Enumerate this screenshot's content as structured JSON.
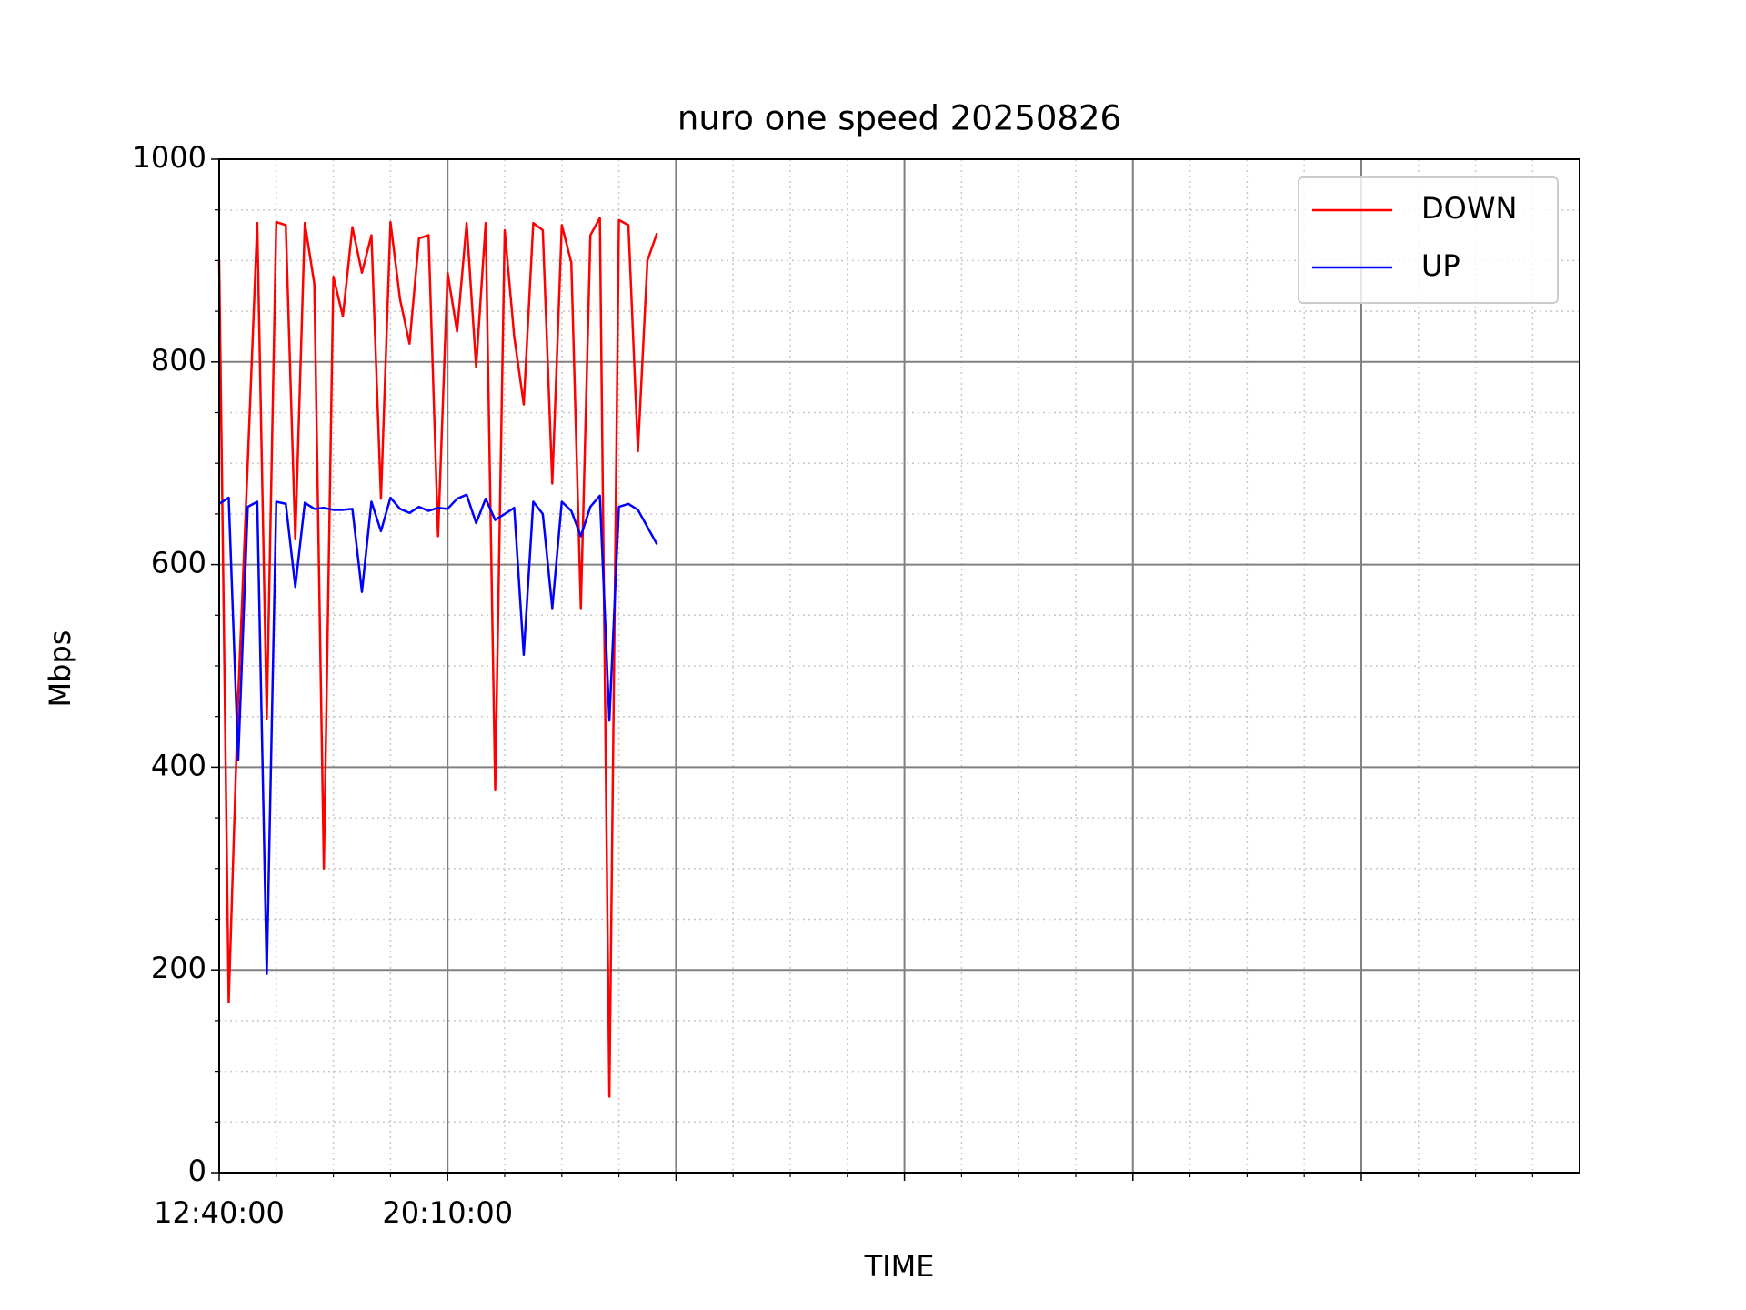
{
  "chart_data": {
    "type": "line",
    "title": "nuro one speed 20250826",
    "xlabel": "TIME",
    "ylabel": "Mbps",
    "x": [
      760,
      778.75,
      797.5,
      816.25,
      835,
      853.75,
      872.5,
      891.25,
      910,
      928.75,
      947.5,
      966.25,
      985,
      1003.75,
      1022.5,
      1041.25,
      1060,
      1078.75,
      1097.5,
      1116.25,
      1135,
      1153.75,
      1172.5,
      1191.25,
      1210,
      1228.75,
      1247.5,
      1266.25,
      1285,
      1303.75,
      1322.5,
      1341.25,
      1360,
      1378.75,
      1397.5,
      1416.25,
      1435,
      1453.75,
      1472.5,
      1491.25,
      1510,
      1528.75,
      1547.5,
      1566.25,
      1585,
      1603.75,
      1622.5
    ],
    "series": [
      {
        "name": "DOWN",
        "color": "#ff0000",
        "values": [
          900,
          168,
          470,
          700,
          937,
          448,
          938,
          935,
          625,
          937,
          877,
          300,
          884,
          845,
          933,
          888,
          925,
          665,
          938,
          862,
          818,
          922,
          925,
          628,
          888,
          830,
          937,
          795,
          937,
          378,
          930,
          825,
          758,
          937,
          930,
          680,
          935,
          898,
          557,
          925,
          942,
          75,
          940,
          935,
          712,
          900,
          927
        ]
      },
      {
        "name": "UP",
        "color": "#0000ff",
        "values": [
          660,
          666,
          407,
          657,
          662,
          196,
          662,
          660,
          578,
          661,
          655,
          656,
          654,
          654,
          655,
          573,
          662,
          633,
          666,
          655,
          651,
          657,
          653,
          656,
          655,
          665,
          669,
          641,
          665,
          644,
          650,
          656,
          511,
          662,
          650,
          557,
          662,
          653,
          628,
          657,
          668,
          446,
          657,
          660,
          654,
          637,
          620
        ]
      }
    ],
    "xlim": [
      760,
      3440
    ],
    "xticks": [
      {
        "value": 760,
        "label": "12:40:00"
      },
      {
        "value": 1210,
        "label": "20:10:00"
      },
      {
        "value": 1660,
        "label": null
      },
      {
        "value": 2110,
        "label": null
      },
      {
        "value": 2560,
        "label": null
      },
      {
        "value": 3010,
        "label": null
      }
    ],
    "ylim": [
      0,
      1000
    ],
    "yticks": [
      0,
      200,
      400,
      600,
      800,
      1000
    ],
    "grid": true,
    "minor_grid": true,
    "legend": "upper right"
  }
}
